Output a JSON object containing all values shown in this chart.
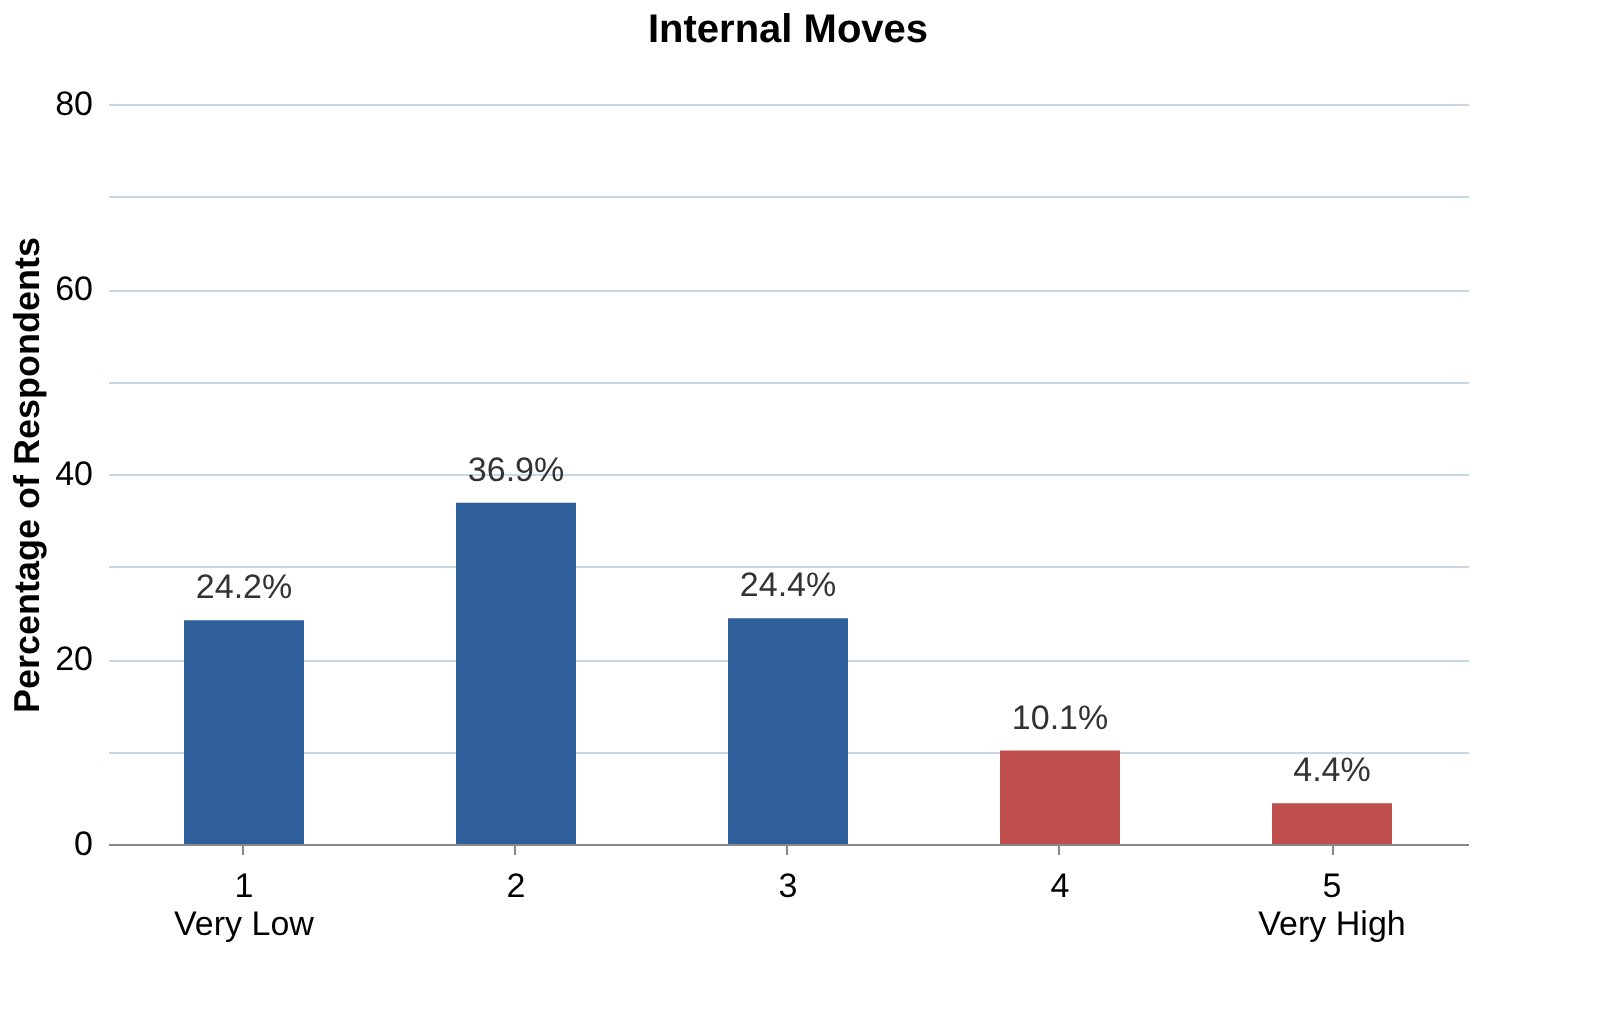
{
  "chart_data": {
    "type": "bar",
    "title": "Internal Moves",
    "ylabel": "Percentage of Respondents",
    "categories": [
      "1\nVery Low",
      "2",
      "3",
      "4",
      "5\nVery High"
    ],
    "values": [
      24.2,
      36.9,
      24.4,
      10.1,
      4.4
    ],
    "colors": [
      "#2e5f9a",
      "#2e5f9a",
      "#2e5f9a",
      "#c0504d",
      "#c0504d"
    ],
    "value_labels": [
      "24.2%",
      "36.9%",
      "24.4%",
      "10.1%",
      "4.4%"
    ],
    "ylim": [
      0,
      80
    ],
    "yticks": [
      0,
      {
        "value": 10,
        "label": null
      },
      20,
      {
        "value": 30,
        "label": null
      },
      40,
      {
        "value": 50,
        "label": null
      },
      60,
      {
        "value": 70,
        "label": null
      },
      80
    ],
    "grid": "y"
  }
}
